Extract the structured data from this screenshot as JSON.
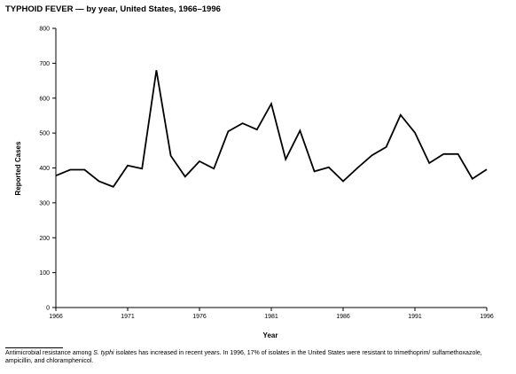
{
  "chart_data": {
    "type": "line",
    "title": "TYPHOID FEVER — by year, United States, 1966–1996",
    "xlabel": "Year",
    "ylabel": "Reported Cases",
    "xlim": [
      1966,
      1996
    ],
    "ylim": [
      0,
      800
    ],
    "x_ticks": [
      1966,
      1971,
      1976,
      1981,
      1986,
      1991,
      1996
    ],
    "y_ticks": [
      0,
      100,
      200,
      300,
      400,
      500,
      600,
      700,
      800
    ],
    "grid": false,
    "series": [
      {
        "x": [
          1966,
          1967,
          1968,
          1969,
          1970,
          1971,
          1972,
          1973,
          1974,
          1975,
          1976,
          1977,
          1978,
          1979,
          1980,
          1981,
          1982,
          1983,
          1984,
          1985,
          1986,
          1987,
          1988,
          1989,
          1990,
          1991,
          1992,
          1993,
          1994,
          1995,
          1996
        ],
        "values": [
          378,
          395,
          395,
          362,
          346,
          407,
          398,
          680,
          435,
          375,
          419,
          398,
          505,
          528,
          510,
          584,
          425,
          507,
          390,
          402,
          362,
          400,
          436,
          460,
          552,
          501,
          414,
          440,
          440,
          369,
          396
        ],
        "color": "#000000"
      }
    ]
  },
  "footnote": {
    "text_before": "Antimicrobial resistance among ",
    "organism": "S. typhi",
    "text_after": " isolates has increased in recent years. In 1996, 17% of isolates in the United States were resistant to trimethoprim/ sulfamethoxazole, ampicillin, and chloramphenicol."
  }
}
